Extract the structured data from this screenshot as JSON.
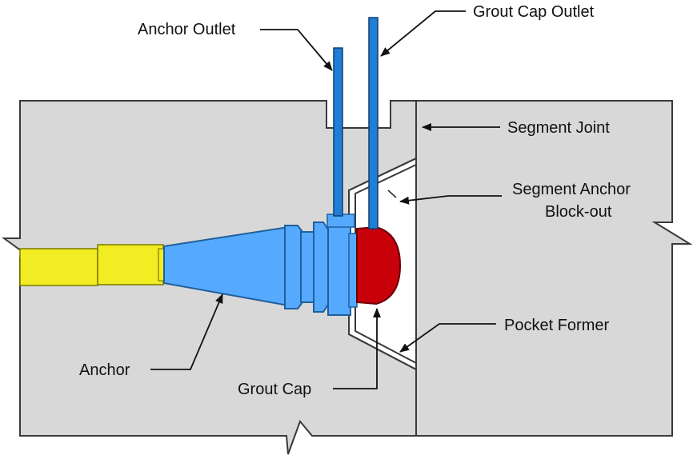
{
  "labels": {
    "anchor_outlet": "Anchor Outlet",
    "grout_cap_outlet": "Grout Cap Outlet",
    "segment_joint": "Segment Joint",
    "segment_anchor_blockout_line1": "Segment Anchor",
    "segment_anchor_blockout_line2": "Block-out",
    "pocket_former": "Pocket Former",
    "anchor": "Anchor",
    "grout_cap": "Grout Cap"
  },
  "colors": {
    "concrete": "#d8d8d8",
    "outline": "#3a3a3a",
    "tendon": "#f2ec22",
    "anchor": "#55aaff",
    "anchor_dark": "#1f5f9c",
    "outlet_pipe": "#1f7fd6",
    "grout_cap": "#c8000a",
    "blockout": "#ffffff",
    "text": "#111111"
  }
}
